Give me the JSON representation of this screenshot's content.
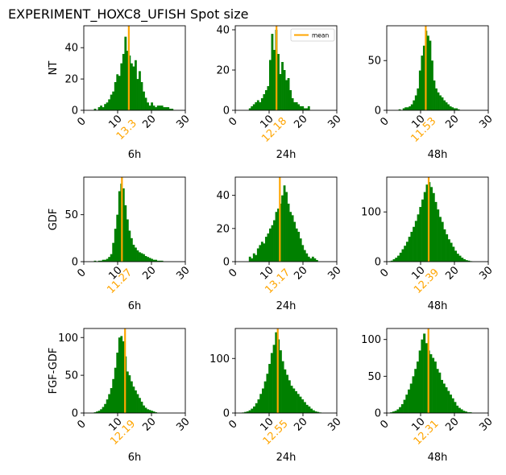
{
  "title": "EXPERIMENT_HOXC8_UFISH  Spot size",
  "colors": {
    "bar": "#008000",
    "mean": "#FFA500",
    "axis": "#000000"
  },
  "chart_data": [
    {
      "type": "bar",
      "row_label": "NT",
      "xlabel": "6h",
      "xlim": [
        0,
        30
      ],
      "ylim": [
        0,
        54
      ],
      "xticks": [
        0,
        10,
        20,
        30
      ],
      "yticks": [
        0,
        20,
        40
      ],
      "mean": 13.3,
      "mean_label": "13.3",
      "bin_start": 3,
      "bin_width": 0.6,
      "values": [
        1,
        0,
        2,
        3,
        2,
        4,
        5,
        7,
        10,
        12,
        18,
        23,
        22,
        30,
        36,
        47,
        38,
        35,
        30,
        28,
        32,
        20,
        25,
        18,
        12,
        8,
        5,
        3,
        5,
        3,
        2,
        3,
        3,
        3,
        2,
        2,
        2,
        1,
        1
      ]
    },
    {
      "type": "bar",
      "xlabel": "24h",
      "xlim": [
        0,
        30
      ],
      "ylim": [
        0,
        42
      ],
      "xticks": [
        0,
        10,
        20,
        30
      ],
      "yticks": [
        0,
        20,
        40
      ],
      "mean": 12.18,
      "mean_label": "12.18",
      "legend": "mean",
      "bin_start": 4,
      "bin_width": 0.6,
      "values": [
        1,
        2,
        3,
        4,
        5,
        4,
        6,
        8,
        10,
        12,
        25,
        38,
        30,
        40,
        28,
        18,
        24,
        20,
        15,
        16,
        10,
        6,
        4,
        4,
        3,
        2,
        2,
        1,
        1,
        2
      ]
    },
    {
      "type": "bar",
      "xlabel": "48h",
      "xlim": [
        0,
        30
      ],
      "ylim": [
        0,
        85
      ],
      "xticks": [
        0,
        10,
        20,
        30
      ],
      "yticks": [
        0,
        50
      ],
      "mean": 11.53,
      "mean_label": "11.53",
      "bin_start": 3.5,
      "bin_width": 0.6,
      "values": [
        1,
        0,
        2,
        3,
        3,
        4,
        6,
        10,
        15,
        22,
        40,
        55,
        65,
        80,
        75,
        70,
        50,
        30,
        22,
        18,
        15,
        13,
        10,
        8,
        6,
        4,
        3,
        2,
        2,
        1
      ]
    },
    {
      "type": "bar",
      "row_label": "GDF",
      "xlabel": "6h",
      "xlim": [
        0,
        30
      ],
      "ylim": [
        0,
        90
      ],
      "xticks": [
        0,
        10,
        20,
        30
      ],
      "yticks": [
        0,
        50
      ],
      "mean": 11.27,
      "mean_label": "11.27",
      "bin_start": 3,
      "bin_width": 0.6,
      "values": [
        1,
        0,
        1,
        1,
        2,
        2,
        3,
        5,
        8,
        20,
        35,
        50,
        75,
        83,
        78,
        60,
        45,
        33,
        25,
        18,
        15,
        12,
        10,
        9,
        8,
        6,
        5,
        4,
        3,
        2,
        2,
        1,
        1,
        1
      ]
    },
    {
      "type": "bar",
      "xlabel": "24h",
      "xlim": [
        0,
        30
      ],
      "ylim": [
        0,
        51
      ],
      "xticks": [
        0,
        10,
        20,
        30
      ],
      "yticks": [
        0,
        20,
        40
      ],
      "mean": 13.17,
      "mean_label": "13.17",
      "bin_start": 4,
      "bin_width": 0.6,
      "values": [
        3,
        2,
        5,
        4,
        8,
        10,
        12,
        11,
        15,
        17,
        20,
        22,
        25,
        30,
        32,
        35,
        40,
        46,
        42,
        35,
        30,
        28,
        24,
        20,
        18,
        14,
        10,
        7,
        5,
        3,
        2,
        3,
        2,
        1
      ]
    },
    {
      "type": "bar",
      "xlabel": "48h",
      "xlim": [
        0,
        30
      ],
      "ylim": [
        0,
        170
      ],
      "xticks": [
        0,
        10,
        20,
        30
      ],
      "yticks": [
        0,
        100
      ],
      "mean": 12.39,
      "mean_label": "12.39",
      "bin_start": 0.5,
      "bin_width": 0.65,
      "values": [
        1,
        2,
        5,
        8,
        12,
        18,
        25,
        32,
        40,
        50,
        60,
        70,
        82,
        95,
        110,
        125,
        140,
        155,
        160,
        150,
        138,
        120,
        105,
        90,
        80,
        65,
        55,
        45,
        38,
        30,
        22,
        16,
        12,
        8,
        5,
        3,
        2,
        1
      ]
    },
    {
      "type": "bar",
      "row_label": "FGF-GDF",
      "xlabel": "6h",
      "xlim": [
        0,
        30
      ],
      "ylim": [
        0,
        112
      ],
      "xticks": [
        0,
        10,
        20,
        30
      ],
      "yticks": [
        0,
        50,
        100
      ],
      "mean": 12.19,
      "mean_label": "12.19",
      "bin_start": 3,
      "bin_width": 0.6,
      "values": [
        1,
        2,
        3,
        5,
        8,
        12,
        18,
        25,
        33,
        45,
        60,
        80,
        100,
        102,
        95,
        75,
        55,
        50,
        42,
        35,
        30,
        25,
        20,
        15,
        10,
        7,
        5,
        4,
        3,
        2,
        1
      ]
    },
    {
      "type": "bar",
      "xlabel": "24h",
      "xlim": [
        0,
        30
      ],
      "ylim": [
        0,
        155
      ],
      "xticks": [
        0,
        10,
        20,
        30
      ],
      "yticks": [
        0,
        100
      ],
      "mean": 12.55,
      "mean_label": "12.55",
      "bin_start": 2,
      "bin_width": 0.65,
      "values": [
        1,
        2,
        3,
        5,
        8,
        12,
        18,
        25,
        35,
        45,
        58,
        72,
        90,
        110,
        125,
        148,
        135,
        115,
        95,
        80,
        70,
        60,
        50,
        45,
        40,
        35,
        30,
        25,
        20,
        15,
        12,
        8,
        5,
        3,
        2,
        1
      ]
    },
    {
      "type": "bar",
      "xlabel": "48h",
      "xlim": [
        0,
        30
      ],
      "ylim": [
        0,
        115
      ],
      "xticks": [
        0,
        10,
        20,
        30
      ],
      "yticks": [
        0,
        50,
        100
      ],
      "mean": 12.31,
      "mean_label": "12.31",
      "bin_start": 1,
      "bin_width": 0.65,
      "values": [
        1,
        2,
        3,
        5,
        8,
        12,
        18,
        25,
        32,
        40,
        50,
        60,
        70,
        85,
        100,
        108,
        95,
        85,
        80,
        75,
        70,
        60,
        55,
        45,
        40,
        35,
        30,
        25,
        20,
        15,
        10,
        7,
        5,
        3,
        2,
        1,
        1
      ]
    }
  ]
}
